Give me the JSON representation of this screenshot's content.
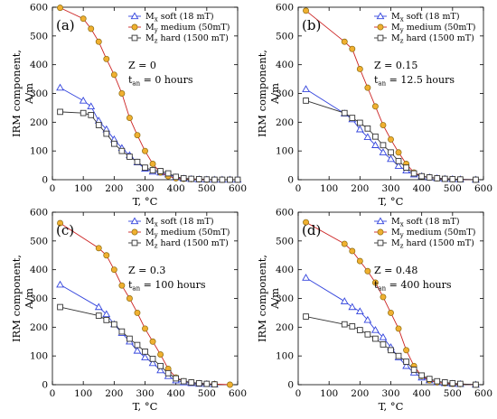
{
  "figure": {
    "colors": {
      "soft": "#3344dd",
      "medium_fill": "#f0b030",
      "medium_line": "#cc2222",
      "hard": "#333333"
    }
  },
  "chart_data": [
    {
      "type": "line",
      "panel_label": "(a)",
      "xlabel": "T, °C",
      "ylabel_line1": "IRM component,",
      "ylabel_line2": "A/m",
      "xlim": [
        0,
        600
      ],
      "ylim": [
        0,
        600
      ],
      "xticks": [
        "0",
        "100",
        "200",
        "300",
        "400",
        "500",
        "600"
      ],
      "yticks": [
        "0",
        "100",
        "200",
        "300",
        "400",
        "500",
        "600"
      ],
      "legend": [
        "Mx soft (18 mT)",
        "My medium (50mT)",
        "Mz hard (1500 mT)"
      ],
      "legend_placement": "top-right",
      "annotation_1": "Z = 0",
      "annotation_2": "tan = 0 hours",
      "series": [
        {
          "name": "Mx soft (18 mT)",
          "key": "soft",
          "x": [
            25,
            100,
            125,
            150,
            175,
            200,
            225,
            250,
            275,
            300,
            325,
            350,
            375,
            400,
            425,
            450,
            475,
            500,
            525,
            550,
            575,
            600
          ],
          "y": [
            320,
            275,
            255,
            205,
            175,
            140,
            110,
            85,
            60,
            38,
            28,
            25,
            18,
            8,
            4,
            2,
            1,
            0,
            0,
            0,
            0,
            0
          ]
        },
        {
          "name": "My medium (50mT)",
          "key": "medium",
          "x": [
            25,
            100,
            125,
            150,
            175,
            200,
            225,
            250,
            275,
            300,
            325,
            350,
            375,
            400,
            425,
            450,
            475,
            500,
            525,
            550,
            575,
            600
          ],
          "y": [
            598,
            560,
            525,
            480,
            420,
            365,
            300,
            215,
            155,
            100,
            55,
            25,
            12,
            5,
            3,
            2,
            1,
            0,
            0,
            0,
            0,
            0
          ]
        },
        {
          "name": "Mz hard (1500 mT)",
          "key": "hard",
          "x": [
            25,
            100,
            125,
            150,
            175,
            200,
            225,
            250,
            275,
            300,
            325,
            350,
            375,
            400,
            425,
            450,
            475,
            500,
            525,
            550,
            575,
            600
          ],
          "y": [
            236,
            232,
            225,
            190,
            160,
            125,
            100,
            80,
            62,
            42,
            33,
            30,
            22,
            10,
            5,
            3,
            2,
            1,
            0,
            0,
            0,
            0
          ]
        }
      ]
    },
    {
      "type": "line",
      "panel_label": "(b)",
      "xlabel": "T, °C",
      "ylabel_line1": "IRM component,",
      "ylabel_line2": "A/m",
      "xlim": [
        0,
        600
      ],
      "ylim": [
        0,
        600
      ],
      "xticks": [
        "0",
        "100",
        "200",
        "300",
        "400",
        "500",
        "600"
      ],
      "yticks": [
        "0",
        "100",
        "200",
        "300",
        "400",
        "500",
        "600"
      ],
      "legend": [
        "Mx soft (18 mT)",
        "My medium (50mT)",
        "Mz hard (1500 mT)"
      ],
      "legend_placement": "top-right",
      "annotation_1": "Z = 0.15",
      "annotation_2": "tan = 12.5 hours",
      "series": [
        {
          "name": "Mx soft (18 mT)",
          "key": "soft",
          "x": [
            25,
            150,
            175,
            200,
            225,
            250,
            275,
            300,
            325,
            350,
            375,
            400,
            425,
            450,
            475,
            500,
            525,
            575
          ],
          "y": [
            315,
            230,
            210,
            175,
            148,
            120,
            95,
            72,
            48,
            32,
            18,
            12,
            8,
            5,
            3,
            2,
            1,
            0
          ]
        },
        {
          "name": "My medium (50mT)",
          "key": "medium",
          "x": [
            25,
            150,
            175,
            200,
            225,
            250,
            275,
            300,
            325,
            350,
            375,
            400,
            425,
            450,
            475,
            500,
            525,
            575
          ],
          "y": [
            588,
            480,
            455,
            385,
            320,
            255,
            190,
            140,
            95,
            55,
            25,
            12,
            8,
            5,
            3,
            2,
            1,
            0
          ]
        },
        {
          "name": "Mz hard (1500 mT)",
          "key": "hard",
          "x": [
            25,
            150,
            175,
            200,
            225,
            250,
            275,
            300,
            325,
            350,
            375,
            400,
            425,
            450,
            475,
            500,
            525,
            575
          ],
          "y": [
            275,
            232,
            215,
            198,
            178,
            150,
            120,
            95,
            65,
            42,
            22,
            12,
            8,
            5,
            3,
            2,
            1,
            0
          ]
        }
      ]
    },
    {
      "type": "line",
      "panel_label": "(c)",
      "xlabel": "T, °C",
      "ylabel_line1": "IRM component,",
      "ylabel_line2": "A/m",
      "xlim": [
        0,
        600
      ],
      "ylim": [
        0,
        600
      ],
      "xticks": [
        "0",
        "100",
        "200",
        "300",
        "400",
        "500",
        "600"
      ],
      "yticks": [
        "0",
        "100",
        "200",
        "300",
        "400",
        "500",
        "600"
      ],
      "legend": [
        "Mx soft (18 mT)",
        "My medium (50mT)",
        "Mz hard (1500 mT)"
      ],
      "legend_placement": "top-right",
      "annotation_1": "Z = 0.3",
      "annotation_2": "tan = 100 hours",
      "series": [
        {
          "name": "Mx soft (18 mT)",
          "key": "soft",
          "x": [
            25,
            150,
            175,
            200,
            225,
            250,
            275,
            300,
            325,
            350,
            375,
            400,
            425,
            450,
            475,
            500,
            525
          ],
          "y": [
            348,
            270,
            245,
            210,
            180,
            150,
            118,
            95,
            75,
            50,
            30,
            15,
            8,
            5,
            3,
            2,
            1
          ]
        },
        {
          "name": "My medium (50mT)",
          "key": "medium",
          "x": [
            25,
            150,
            175,
            200,
            225,
            250,
            275,
            300,
            325,
            350,
            375,
            400,
            425,
            450,
            475,
            500,
            525,
            575
          ],
          "y": [
            562,
            475,
            450,
            400,
            345,
            300,
            250,
            195,
            150,
            105,
            55,
            25,
            12,
            8,
            5,
            3,
            2,
            0
          ]
        },
        {
          "name": "Mz hard (1500 mT)",
          "key": "hard",
          "x": [
            25,
            150,
            175,
            200,
            225,
            250,
            275,
            300,
            325,
            350,
            375,
            400,
            425,
            450,
            475,
            500,
            525
          ],
          "y": [
            270,
            240,
            225,
            210,
            185,
            160,
            138,
            115,
            90,
            65,
            40,
            22,
            12,
            8,
            5,
            3,
            1
          ]
        }
      ]
    },
    {
      "type": "line",
      "panel_label": "(d)",
      "xlabel": "T, °C",
      "ylabel_line1": "IRM component,",
      "ylabel_line2": "A/m",
      "xlim": [
        0,
        600
      ],
      "ylim": [
        0,
        600
      ],
      "xticks": [
        "0",
        "100",
        "200",
        "300",
        "400",
        "500",
        "600"
      ],
      "yticks": [
        "0",
        "100",
        "200",
        "300",
        "400",
        "500",
        "600"
      ],
      "legend": [
        "Mx soft (18 mT)",
        "My medium (50mT)",
        "Mz hard (1500 mT)"
      ],
      "legend_placement": "top-right",
      "annotation_1": "Z = 0.48",
      "annotation_2": "tan = 400 hours",
      "series": [
        {
          "name": "Mx soft (18 mT)",
          "key": "soft",
          "x": [
            25,
            150,
            175,
            200,
            225,
            250,
            275,
            300,
            325,
            350,
            375,
            400,
            425,
            450,
            475,
            500,
            525,
            575
          ],
          "y": [
            372,
            290,
            270,
            255,
            225,
            190,
            165,
            130,
            95,
            65,
            42,
            25,
            15,
            8,
            5,
            3,
            2,
            0
          ]
        },
        {
          "name": "My medium (50mT)",
          "key": "medium",
          "x": [
            25,
            150,
            175,
            200,
            225,
            250,
            275,
            300,
            325,
            350,
            375,
            400,
            425,
            450,
            475,
            500,
            525,
            575
          ],
          "y": [
            565,
            490,
            465,
            430,
            395,
            355,
            305,
            250,
            195,
            120,
            65,
            30,
            15,
            8,
            5,
            3,
            2,
            0
          ]
        },
        {
          "name": "Mz hard (1500 mT)",
          "key": "hard",
          "x": [
            25,
            150,
            175,
            200,
            225,
            250,
            275,
            300,
            325,
            350,
            375,
            400,
            425,
            450,
            475,
            500,
            525,
            575
          ],
          "y": [
            237,
            210,
            203,
            190,
            175,
            160,
            140,
            120,
            100,
            80,
            52,
            32,
            20,
            12,
            8,
            5,
            3,
            0
          ]
        }
      ]
    }
  ]
}
